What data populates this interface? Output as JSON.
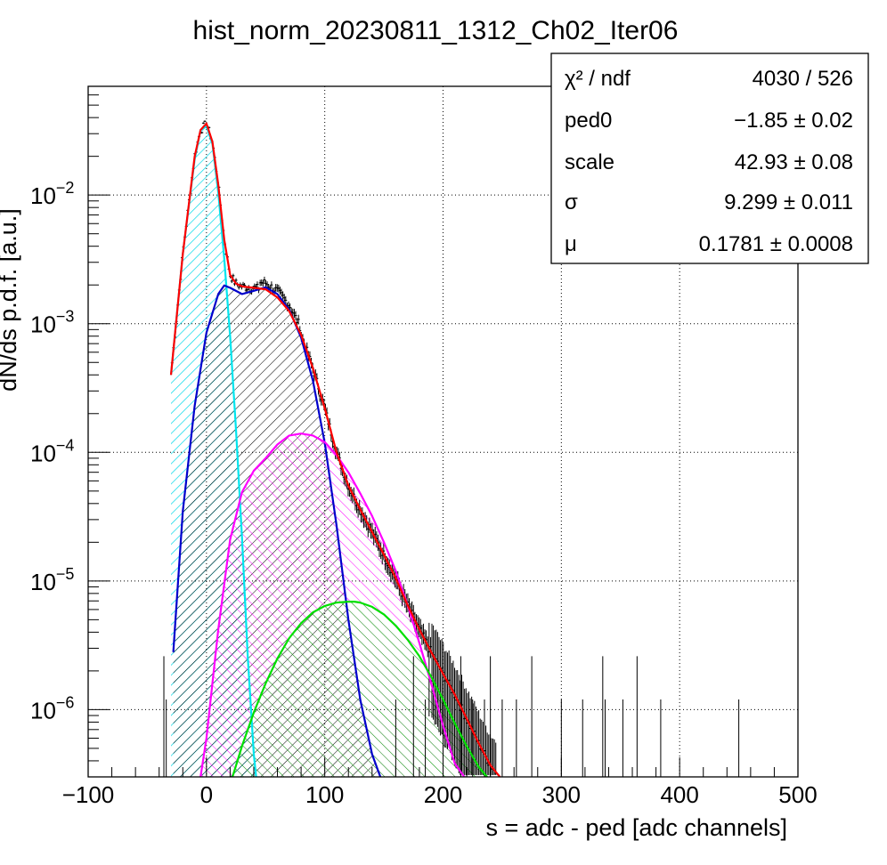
{
  "chart_data": {
    "type": "histogram",
    "title": "hist_norm_20230811_1312_Ch02_Iter06",
    "xlabel": "s = adc - ped [adc channels]",
    "ylabel": "dN/ds p.d.f. [a.u.]",
    "xlim": [
      -100,
      500
    ],
    "ylim": [
      3e-07,
      0.07
    ],
    "yscale": "log",
    "grid": true,
    "x_ticks": [
      -100,
      0,
      100,
      200,
      300,
      400,
      500
    ],
    "y_ticks": [
      {
        "value": 1e-06,
        "mantissa": "10",
        "exponent": "−6"
      },
      {
        "value": 1e-05,
        "mantissa": "10",
        "exponent": "−5"
      },
      {
        "value": 0.0001,
        "mantissa": "10",
        "exponent": "−4"
      },
      {
        "value": 0.001,
        "mantissa": "10",
        "exponent": "−3"
      },
      {
        "value": 0.01,
        "mantissa": "10",
        "exponent": "−2"
      }
    ],
    "fit_parameters": [
      {
        "name": "χ² / ndf",
        "value": "4030 / 526"
      },
      {
        "name": "ped0",
        "value": "−1.85 ± 0.02"
      },
      {
        "name": "scale",
        "value": "42.93 ± 0.08"
      },
      {
        "name": "σ",
        "value": "9.299 ± 0.011"
      },
      {
        "name": "μ",
        "value": "0.1781 ± 0.0008"
      }
    ],
    "series": [
      {
        "color": "#ff0000",
        "kind": "total-fit",
        "x": [
          -30,
          -20,
          -10,
          -5,
          0,
          5,
          10,
          15,
          20,
          25,
          30,
          40,
          50,
          60,
          70,
          80,
          90,
          100,
          110,
          120,
          130,
          140,
          150,
          160,
          170,
          180,
          190,
          200,
          210,
          220,
          230,
          240,
          248
        ],
        "y": [
          0.0004,
          0.0035,
          0.02,
          0.032,
          0.036,
          0.026,
          0.012,
          0.0045,
          0.0024,
          0.00205,
          0.00195,
          0.0019,
          0.00185,
          0.0016,
          0.00125,
          0.00082,
          0.00045,
          0.00022,
          0.0001,
          5.5e-05,
          3.6e-05,
          2.4e-05,
          1.6e-05,
          1.05e-05,
          6.5e-06,
          4.2e-06,
          2.8e-06,
          1.9e-06,
          1.3e-06,
          8.5e-07,
          5.5e-07,
          3.7e-07,
          3e-07
        ]
      },
      {
        "color": "#00e5ee",
        "kind": "pedestal-component",
        "fill": "hatched",
        "x": [
          -30,
          -20,
          -10,
          -5,
          0,
          5,
          10,
          15,
          20,
          25,
          30,
          35,
          40,
          42
        ],
        "y": [
          0.0004,
          0.0035,
          0.019,
          0.032,
          0.0345,
          0.025,
          0.0105,
          0.0032,
          0.0008,
          0.00015,
          2.2e-05,
          2.5e-06,
          4.5e-07,
          3e-07
        ]
      },
      {
        "color": "#0000cc",
        "kind": "1-pe-component",
        "fill": "hatched",
        "x": [
          -28,
          -20,
          -10,
          0,
          10,
          15,
          20,
          30,
          40,
          50,
          60,
          70,
          80,
          90,
          100,
          110,
          120,
          130,
          140,
          147
        ],
        "y": [
          2.8e-06,
          3.5e-05,
          0.00023,
          0.00085,
          0.0017,
          0.00198,
          0.0019,
          0.0017,
          0.0018,
          0.00192,
          0.0017,
          0.00128,
          0.00078,
          0.00036,
          0.000118,
          2.7e-05,
          5e-06,
          1.2e-06,
          4.5e-07,
          3e-07
        ]
      },
      {
        "color": "#ff00ff",
        "kind": "2-pe-component",
        "fill": "hatched",
        "x": [
          -5,
          0,
          10,
          20,
          30,
          40,
          50,
          60,
          70,
          80,
          90,
          100,
          110,
          120,
          130,
          140,
          150,
          160,
          170,
          180,
          190,
          200,
          210,
          218
        ],
        "y": [
          3e-07,
          6e-07,
          4.2e-06,
          2.1e-05,
          4.9e-05,
          7.2e-05,
          9e-05,
          0.000115,
          0.000135,
          0.00014,
          0.000135,
          0.00012,
          9.5e-05,
          7e-05,
          4.8e-05,
          3.2e-05,
          2e-05,
          1.2e-05,
          6.5e-06,
          3.3e-06,
          1.6e-06,
          7.5e-07,
          3.8e-07,
          3e-07
        ]
      },
      {
        "color": "#00e000",
        "kind": "3-pe-component",
        "fill": "hatched",
        "x": [
          22,
          30,
          40,
          50,
          60,
          70,
          80,
          90,
          100,
          110,
          120,
          125,
          130,
          140,
          150,
          160,
          170,
          180,
          190,
          200,
          210,
          220,
          230,
          240
        ],
        "y": [
          3e-07,
          5.2e-07,
          9.5e-07,
          1.6e-06,
          2.5e-06,
          3.6e-06,
          4.7e-06,
          5.7e-06,
          6.4e-06,
          6.8e-06,
          6.9e-06,
          6.9e-06,
          6.8e-06,
          6.3e-06,
          5.5e-06,
          4.5e-06,
          3.5e-06,
          2.6e-06,
          1.8e-06,
          1.2e-06,
          7.8e-07,
          5.2e-07,
          3.6e-07,
          2.8e-07
        ]
      }
    ]
  }
}
